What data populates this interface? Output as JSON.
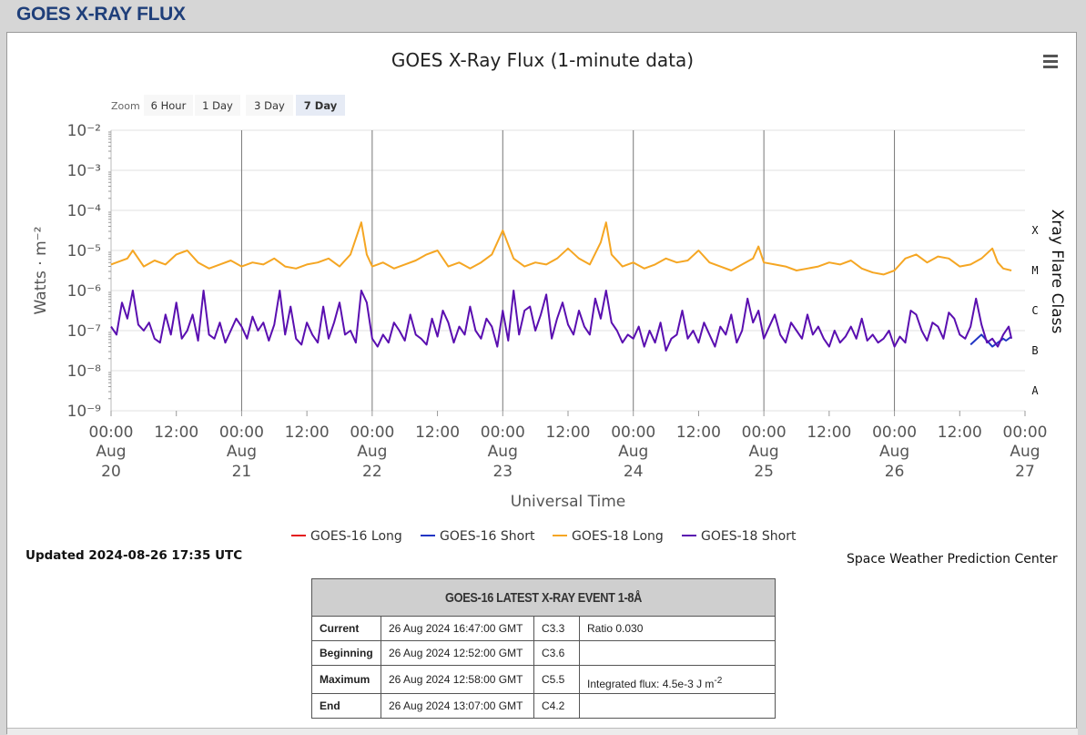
{
  "page": {
    "heading": "GOES X-RAY FLUX"
  },
  "zoom": {
    "label": "Zoom",
    "buttons": [
      {
        "label": "6 Hour",
        "active": false
      },
      {
        "label": "1 Day",
        "active": false
      },
      {
        "label": "3 Day",
        "active": false
      },
      {
        "label": "7 Day",
        "active": true
      }
    ]
  },
  "chart_data": {
    "type": "line",
    "title": "GOES X-Ray Flux (1-minute data)",
    "xlabel": "Universal Time",
    "ylabel": "Watts · m⁻²",
    "y2label": "Xray Flare Class",
    "yscale": "log",
    "ylim": [
      1e-09,
      0.01
    ],
    "xlim": [
      "2024-08-20T00:00Z",
      "2024-08-27T00:00Z"
    ],
    "y_ticks": [
      "10⁻²",
      "10⁻³",
      "10⁻⁴",
      "10⁻⁵",
      "10⁻⁶",
      "10⁻⁷",
      "10⁻⁸",
      "10⁻⁹"
    ],
    "x_ticks": [
      {
        "time": "00:00",
        "date": "Aug",
        "day": "20"
      },
      {
        "time": "12:00",
        "date": "",
        "day": ""
      },
      {
        "time": "00:00",
        "date": "Aug",
        "day": "21"
      },
      {
        "time": "12:00",
        "date": "",
        "day": ""
      },
      {
        "time": "00:00",
        "date": "Aug",
        "day": "22"
      },
      {
        "time": "12:00",
        "date": "",
        "day": ""
      },
      {
        "time": "00:00",
        "date": "Aug",
        "day": "23"
      },
      {
        "time": "12:00",
        "date": "",
        "day": ""
      },
      {
        "time": "00:00",
        "date": "Aug",
        "day": "24"
      },
      {
        "time": "12:00",
        "date": "",
        "day": ""
      },
      {
        "time": "00:00",
        "date": "Aug",
        "day": "25"
      },
      {
        "time": "12:00",
        "date": "",
        "day": ""
      },
      {
        "time": "00:00",
        "date": "Aug",
        "day": "26"
      },
      {
        "time": "12:00",
        "date": "",
        "day": ""
      },
      {
        "time": "00:00",
        "date": "Aug",
        "day": "27"
      }
    ],
    "flare_classes": [
      {
        "label": "X",
        "value": 0.0001
      },
      {
        "label": "M",
        "value": 1e-05
      },
      {
        "label": "C",
        "value": 1e-06
      },
      {
        "label": "B",
        "value": 1e-07
      },
      {
        "label": "A",
        "value": 1e-08
      }
    ],
    "grid": true,
    "legend_position": "bottom",
    "series": [
      {
        "name": "GOES-16 Long",
        "color": "#e41a1c",
        "x_hours": [],
        "log10_flux": []
      },
      {
        "name": "GOES-16 Short",
        "color": "#2135c4",
        "x_hours": [
          158,
          160,
          162,
          164,
          164.5,
          165.5
        ],
        "log10_flux": [
          -7.35,
          -7.1,
          -7.4,
          -7.2,
          -7.25,
          -7.15
        ]
      },
      {
        "name": "GOES-18 Long",
        "color": "#f5a623",
        "x_hours": [
          0,
          1,
          3,
          4,
          6,
          8,
          10,
          12,
          14,
          16,
          18,
          20,
          22,
          24,
          26,
          28,
          30,
          32,
          34,
          36,
          38,
          40,
          42,
          44,
          46,
          47,
          48,
          49,
          50,
          52,
          54,
          56,
          58,
          60,
          62,
          64,
          66,
          68,
          70,
          72,
          74,
          76,
          78,
          80,
          82,
          84,
          86,
          88,
          90,
          91,
          92,
          94,
          96,
          98,
          100,
          102,
          104,
          106,
          108,
          110,
          112,
          114,
          116,
          118,
          119,
          120,
          122,
          124,
          126,
          128,
          130,
          132,
          134,
          136,
          138,
          140,
          142,
          144,
          146,
          148,
          150,
          152,
          154,
          156,
          158,
          160,
          162,
          163,
          164,
          165.5
        ],
        "log10_flux": [
          -5.35,
          -5.3,
          -5.2,
          -5.0,
          -5.4,
          -5.25,
          -5.35,
          -5.1,
          -5.0,
          -5.3,
          -5.45,
          -5.35,
          -5.25,
          -5.4,
          -5.3,
          -5.35,
          -5.2,
          -5.4,
          -5.45,
          -5.35,
          -5.3,
          -5.2,
          -5.4,
          -5.1,
          -4.3,
          -5.1,
          -5.4,
          -5.35,
          -5.3,
          -5.45,
          -5.35,
          -5.25,
          -5.1,
          -5.0,
          -5.4,
          -5.3,
          -5.45,
          -5.3,
          -5.1,
          -4.5,
          -5.2,
          -5.4,
          -5.3,
          -5.35,
          -5.2,
          -4.95,
          -5.2,
          -5.35,
          -4.8,
          -4.3,
          -5.1,
          -5.4,
          -5.3,
          -5.45,
          -5.35,
          -5.2,
          -5.3,
          -5.25,
          -5.0,
          -5.3,
          -5.4,
          -5.5,
          -5.35,
          -5.2,
          -4.9,
          -5.3,
          -5.35,
          -5.4,
          -5.5,
          -5.45,
          -5.4,
          -5.3,
          -5.35,
          -5.25,
          -5.45,
          -5.55,
          -5.6,
          -5.5,
          -5.2,
          -5.1,
          -5.3,
          -5.15,
          -5.2,
          -5.4,
          -5.35,
          -5.2,
          -4.95,
          -5.3,
          -5.45,
          -5.5
        ]
      },
      {
        "name": "GOES-18 Short",
        "color": "#5a0fb0",
        "x_hours": [
          0,
          1,
          2,
          3,
          4,
          5,
          6,
          7,
          8,
          9,
          10,
          11,
          12,
          13,
          14,
          15,
          16,
          17,
          18,
          19,
          20,
          21,
          22,
          23,
          24,
          25,
          26,
          27,
          28,
          29,
          30,
          31,
          32,
          33,
          34,
          35,
          36,
          37,
          38,
          39,
          40,
          41,
          42,
          43,
          44,
          45,
          46,
          47,
          48,
          49,
          50,
          51,
          52,
          53,
          54,
          55,
          56,
          57,
          58,
          59,
          60,
          61,
          62,
          63,
          64,
          65,
          66,
          67,
          68,
          69,
          70,
          71,
          72,
          73,
          74,
          75,
          76,
          77,
          78,
          79,
          80,
          81,
          82,
          83,
          84,
          85,
          86,
          87,
          88,
          89,
          90,
          91,
          92,
          93,
          94,
          95,
          96,
          97,
          98,
          99,
          100,
          101,
          102,
          103,
          104,
          105,
          106,
          107,
          108,
          109,
          110,
          111,
          112,
          113,
          114,
          115,
          116,
          117,
          118,
          119,
          120,
          121,
          122,
          123,
          124,
          125,
          126,
          127,
          128,
          129,
          130,
          131,
          132,
          133,
          134,
          135,
          136,
          137,
          138,
          139,
          140,
          141,
          142,
          143,
          144,
          145,
          146,
          147,
          148,
          149,
          150,
          151,
          152,
          153,
          154,
          155,
          156,
          157,
          158,
          159,
          160,
          161,
          162,
          163,
          164,
          165,
          165.5
        ],
        "log10_flux": [
          -6.9,
          -7.1,
          -6.3,
          -6.7,
          -6.0,
          -6.85,
          -7.0,
          -6.8,
          -7.2,
          -7.3,
          -6.6,
          -7.1,
          -6.3,
          -7.2,
          -7.0,
          -6.6,
          -7.25,
          -6.0,
          -7.1,
          -7.2,
          -6.8,
          -7.3,
          -7.0,
          -6.7,
          -6.9,
          -7.2,
          -6.65,
          -7.0,
          -6.8,
          -7.25,
          -6.85,
          -6.0,
          -7.1,
          -6.4,
          -7.2,
          -7.35,
          -6.8,
          -7.1,
          -7.3,
          -6.4,
          -7.2,
          -6.8,
          -6.3,
          -7.1,
          -7.0,
          -7.3,
          -6.0,
          -6.3,
          -7.2,
          -7.4,
          -7.1,
          -7.3,
          -6.8,
          -7.0,
          -7.25,
          -6.6,
          -7.1,
          -7.2,
          -7.35,
          -6.7,
          -7.15,
          -6.5,
          -6.8,
          -7.3,
          -6.9,
          -7.1,
          -6.4,
          -7.0,
          -7.2,
          -6.7,
          -6.9,
          -7.4,
          -6.5,
          -7.25,
          -6.0,
          -7.1,
          -6.5,
          -6.4,
          -7.0,
          -6.6,
          -6.1,
          -7.2,
          -6.7,
          -6.3,
          -6.85,
          -7.1,
          -6.5,
          -6.9,
          -7.1,
          -6.2,
          -6.7,
          -6.0,
          -6.8,
          -7.0,
          -7.3,
          -7.1,
          -7.2,
          -6.9,
          -7.4,
          -7.0,
          -7.3,
          -6.8,
          -7.5,
          -7.2,
          -7.1,
          -6.5,
          -7.2,
          -7.0,
          -7.3,
          -6.8,
          -7.1,
          -7.4,
          -6.9,
          -7.1,
          -6.6,
          -7.3,
          -7.0,
          -6.2,
          -6.8,
          -6.5,
          -7.2,
          -6.9,
          -6.6,
          -7.1,
          -7.3,
          -6.8,
          -7.0,
          -7.2,
          -6.6,
          -7.1,
          -6.9,
          -7.2,
          -7.4,
          -7.0,
          -7.3,
          -7.15,
          -6.9,
          -7.2,
          -6.7,
          -7.25,
          -7.1,
          -7.3,
          -7.2,
          -7.0,
          -7.4,
          -7.15,
          -7.3,
          -6.5,
          -6.6,
          -7.0,
          -7.25,
          -6.8,
          -6.9,
          -7.2,
          -6.55,
          -6.7,
          -7.1,
          -7.2,
          -6.9,
          -6.2,
          -6.85,
          -7.3,
          -7.2,
          -7.4,
          -7.1,
          -6.9,
          -7.2,
          -7.05,
          -7.1
        ]
      }
    ]
  },
  "legend": {
    "items": [
      {
        "label": "GOES-16 Long",
        "color": "#e41a1c"
      },
      {
        "label": "GOES-16 Short",
        "color": "#2135c4"
      },
      {
        "label": "GOES-18 Long",
        "color": "#f5a623"
      },
      {
        "label": "GOES-18 Short",
        "color": "#5a0fb0"
      }
    ]
  },
  "footer": {
    "updated": "Updated 2024-08-26 17:35 UTC",
    "credit": "Space Weather Prediction Center"
  },
  "event_table": {
    "title": "GOES-16 LATEST X-RAY EVENT 1-8Å",
    "rows": [
      {
        "label": "Current",
        "time": "26 Aug 2024 16:47:00 GMT",
        "cls": "C3.3",
        "extra": "Ratio 0.030"
      },
      {
        "label": "Beginning",
        "time": "26 Aug 2024 12:52:00 GMT",
        "cls": "C3.6",
        "extra": ""
      },
      {
        "label": "Maximum",
        "time": "26 Aug 2024 12:58:00 GMT",
        "cls": "C5.5",
        "extra": "Integrated flux: 4.5e-3 J m",
        "extra_sup": "-2"
      },
      {
        "label": "End",
        "time": "26 Aug 2024 13:07:00 GMT",
        "cls": "C4.2",
        "extra": ""
      }
    ]
  }
}
